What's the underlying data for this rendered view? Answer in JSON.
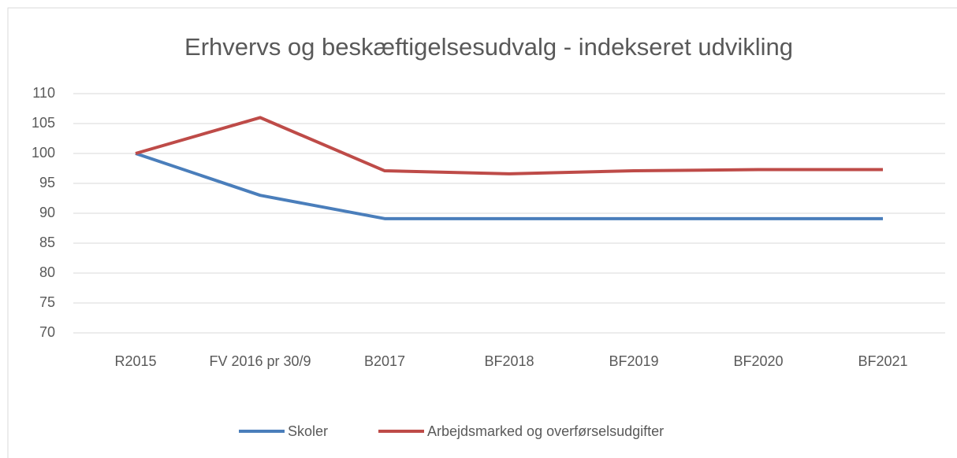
{
  "chart_data": {
    "type": "line",
    "title": "Erhvervs og beskæftigelsesudvalg - indekseret udvikling",
    "categories": [
      "R2015",
      "FV 2016 pr 30/9",
      "B2017",
      "BF2018",
      "BF2019",
      "BF2020",
      "BF2021"
    ],
    "series": [
      {
        "name": "Skoler",
        "color": "#4a7ebb",
        "values": [
          100,
          93,
          89.1,
          89.1,
          89.1,
          89.1,
          89.1
        ]
      },
      {
        "name": "Arbejdsmarked og overførselsudgifter",
        "color": "#be4b48",
        "values": [
          100,
          106,
          97.1,
          96.6,
          97.1,
          97.3,
          97.3
        ]
      }
    ],
    "ylim": [
      70,
      110
    ],
    "yticks": [
      70,
      75,
      80,
      85,
      90,
      95,
      100,
      105,
      110
    ],
    "grid": true,
    "legend": "bottom"
  }
}
